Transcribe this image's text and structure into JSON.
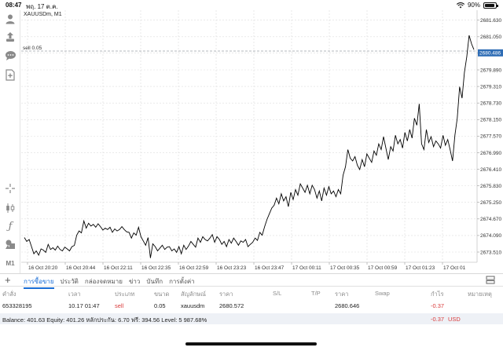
{
  "status_bar": {
    "time": "08:47",
    "date": "พฤ. 17 ต.ค.",
    "battery": "90%"
  },
  "chart": {
    "symbol_label": "XAUUSDm, M1",
    "sell_label": "sell 0.05",
    "current_price_label": "2680.486",
    "accent_color": "#2f6db5",
    "line_color": "#000000"
  },
  "chart_data": {
    "type": "line",
    "series": [
      {
        "values": [
          2674.02,
          2673.88,
          2673.95,
          2673.7,
          2673.45,
          2673.55,
          2673.4,
          2673.62,
          2673.58,
          2673.5,
          2673.78,
          2673.6,
          2673.66,
          2673.58,
          2673.72,
          2673.6,
          2673.55,
          2673.68,
          2673.62,
          2673.55,
          2673.7,
          2673.74,
          2674.1,
          2674.25,
          2674.18,
          2674.6,
          2674.35,
          2674.52,
          2674.42,
          2674.48,
          2674.38,
          2674.5,
          2674.4,
          2674.28,
          2674.35,
          2674.3,
          2674.38,
          2674.2,
          2674.32,
          2674.25,
          2674.3,
          2674.4,
          2674.3,
          2674.22,
          2674.2,
          2674.0,
          2674.18,
          2674.1,
          2674.38,
          2674.05,
          2673.9,
          2673.75,
          2674.02,
          2673.3,
          2673.8,
          2673.7,
          2673.55,
          2673.65,
          2673.75,
          2673.6,
          2673.68,
          2673.7,
          2673.55,
          2673.62,
          2673.5,
          2673.7,
          2673.45,
          2673.75,
          2673.6,
          2673.72,
          2673.88,
          2673.78,
          2673.68,
          2674.0,
          2673.85,
          2674.05,
          2673.95,
          2673.9,
          2674.0,
          2674.12,
          2673.85,
          2674.05,
          2673.95,
          2673.78,
          2673.88,
          2673.7,
          2673.95,
          2673.82,
          2674.0,
          2673.88,
          2673.75,
          2673.9,
          2673.85,
          2673.95,
          2673.7,
          2673.78,
          2673.85,
          2674.0,
          2673.92,
          2674.2,
          2674.1,
          2674.4,
          2674.65,
          2674.85,
          2675.05,
          2675.15,
          2675.4,
          2675.2,
          2675.55,
          2675.3,
          2675.45,
          2675.1,
          2675.6,
          2675.35,
          2675.7,
          2675.5,
          2675.9,
          2675.75,
          2675.6,
          2675.85,
          2675.55,
          2675.85,
          2675.7,
          2675.4,
          2675.65,
          2675.3,
          2675.75,
          2675.5,
          2675.8,
          2675.55,
          2675.65,
          2675.45,
          2675.7,
          2675.55,
          2676.2,
          2676.5,
          2677.1,
          2676.8,
          2676.7,
          2676.85,
          2676.55,
          2676.4,
          2676.75,
          2676.5,
          2676.95,
          2676.8,
          2676.65,
          2677.05,
          2676.9,
          2677.3,
          2677.1,
          2677.55,
          2677.15,
          2676.75,
          2677.2,
          2677.05,
          2677.6,
          2677.3,
          2677.45,
          2677.15,
          2677.7,
          2677.4,
          2677.8,
          2677.5,
          2678.2,
          2677.95,
          2678.7,
          2677.3,
          2677.1,
          2677.8,
          2677.35,
          2677.55,
          2677.2,
          2677.4,
          2677.3,
          2677.15,
          2677.6,
          2677.25,
          2677.45,
          2677.1,
          2676.7,
          2677.6,
          2678.2,
          2679.3,
          2678.9,
          2679.8,
          2680.35,
          2681.1,
          2680.8,
          2680.6
        ]
      }
    ],
    "x_tick_labels": [
      "16 Oct 20:20",
      "16 Oct 20:44",
      "16 Oct 22:11",
      "16 Oct 22:35",
      "16 Oct 22:59",
      "16 Oct 23:23",
      "16 Oct 23:47",
      "17 Oct 00:11",
      "17 Oct 00:35",
      "17 Oct 00:59",
      "17 Oct 01:23",
      "17 Oct 01"
    ],
    "y_tick_labels": [
      "2681.630",
      "2681.050",
      "2680.486",
      "2679.890",
      "2679.310",
      "2678.730",
      "2678.150",
      "2677.570",
      "2676.990",
      "2676.410",
      "2675.830",
      "2675.250",
      "2674.670",
      "2674.090",
      "2673.510"
    ],
    "ylim": [
      2673.18,
      2681.98
    ],
    "reference_lines": [
      {
        "label": "sell 0.05",
        "value": 2680.55
      }
    ],
    "current_price": 2680.486,
    "grid": true
  },
  "tabs": {
    "items": [
      "การซื้อขาย",
      "ประวัติ",
      "กล่องจดหมาย",
      "ข่าว",
      "บันทึก",
      "การตั้งค่า"
    ],
    "active_index": 0
  },
  "table": {
    "headers": [
      "คำสั่ง",
      "เวลา",
      "ประเภท",
      "ขนาด",
      "สัญลักษณ์",
      "ราคา",
      "S/L",
      "T/P",
      "ราคา",
      "Swap",
      "กำไร",
      "หมายเหตุ"
    ],
    "row": [
      "653328195",
      "10.17 01:47",
      "sell",
      "0.05",
      "xauusdm",
      "2680.572",
      "",
      "",
      "2680.646",
      "",
      "-0.37",
      ""
    ],
    "balance_text": "Balance: 401.63 Equity: 401.26 หลักประกัน: 6.70 ฟรี: 394.56 Level: 5 987.68%",
    "balance_profit": "-0.37",
    "balance_currency": "USD",
    "negative_color": "#d93b3b"
  },
  "icons": {
    "toolbar": [
      "user-icon",
      "share-icon",
      "chat-icon",
      "new-order-icon",
      "crosshair-icon",
      "candles-icon",
      "function-icon",
      "shapes-icon",
      "timeframe-icon"
    ],
    "timeframe_label": "M1"
  }
}
